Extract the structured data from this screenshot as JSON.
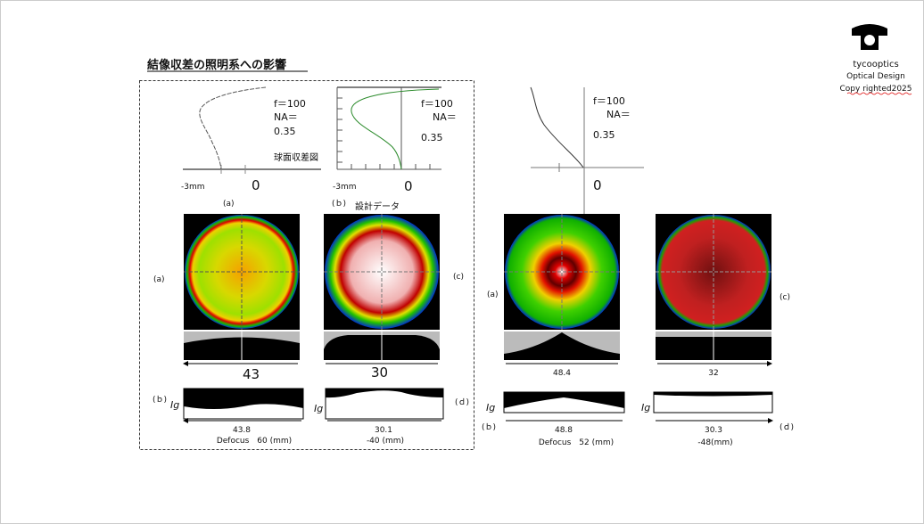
{
  "header": {
    "title": "結像収差の照明系への影響"
  },
  "logo": {
    "name": "tycooptics",
    "subtitle": "Optical Design",
    "copyright": "Copy righted2025"
  },
  "aberration_plots": [
    {
      "focal": "f＝100",
      "na": "NA＝",
      "na_value": "0.35",
      "note": "球面収差図",
      "scale": "-3mm",
      "zero": "0",
      "caption": "(a)"
    },
    {
      "focal": "f＝100",
      "na": "NA＝",
      "na_value": "0.35",
      "scale": "-3mm",
      "zero": "0",
      "caption": "(ｂ)",
      "note": "設計データ"
    },
    {
      "focal": "f＝100",
      "na": "NA＝",
      "na_value": "0.35",
      "zero": "0"
    }
  ],
  "left_group": {
    "label_a": "(a)",
    "label_c": "(c)",
    "label_b": "(ｂ)",
    "label_d": "(ｄ)",
    "width_a": "43",
    "width_c": "30",
    "ig_b": "Ig",
    "ig_d": "Ig",
    "width_b": "43.8",
    "defocus_b": "Defocus　60 (mm)",
    "width_d": "30.1",
    "defocus_d": "-40 (mm)"
  },
  "right_group": {
    "label_a": "(a)",
    "label_c": "(c)",
    "label_b": "(ｂ)",
    "label_d": "(ｄ)",
    "width_a": "48.4",
    "width_c": "32",
    "ig_b": "Ig",
    "ig_d": "Ig",
    "width_b": "48.8",
    "defocus_b": "Defocus　52 (mm)",
    "width_d": "30.3",
    "defocus_d": "-48(mm)"
  }
}
